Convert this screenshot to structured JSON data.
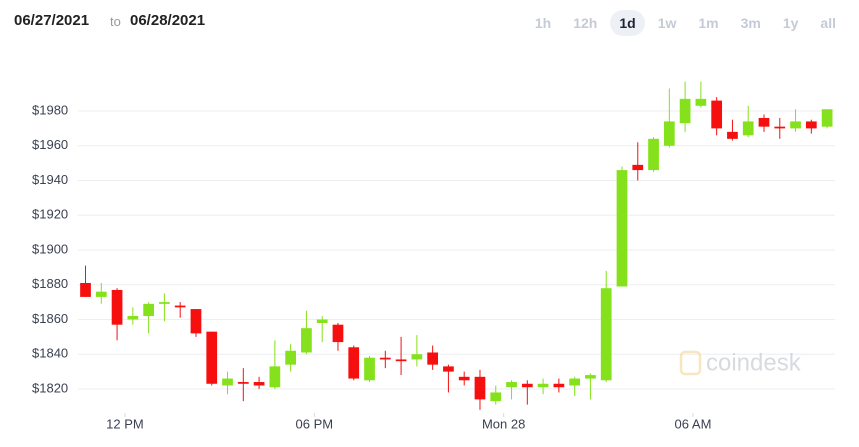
{
  "header": {
    "from": "06/27/2021",
    "to": "to",
    "until": "06/28/2021",
    "ranges": [
      "1h",
      "12h",
      "1d",
      "1w",
      "1m",
      "3m",
      "1y",
      "all"
    ],
    "active_range": 2
  },
  "chart_data": {
    "type": "candlestick",
    "x": [
      10.75,
      11.25,
      11.75,
      12.25,
      12.75,
      13.25,
      13.75,
      14.25,
      14.75,
      15.25,
      15.75,
      16.25,
      16.75,
      17.25,
      17.75,
      18.25,
      18.75,
      19.25,
      19.75,
      20.25,
      20.75,
      21.25,
      21.75,
      22.25,
      22.75,
      23.25,
      23.75,
      24.25,
      24.75,
      25.25,
      25.75,
      26.25,
      26.75,
      27.25,
      27.75,
      28.25,
      28.75,
      29.25,
      29.75,
      30.25,
      30.75,
      31.25,
      31.75,
      32.25,
      32.75,
      33.25,
      33.75,
      34.25
    ],
    "open": [
      1881,
      1873,
      1877,
      1860,
      1862,
      1869,
      1868,
      1866,
      1853,
      1822,
      1824,
      1824,
      1821,
      1834,
      1841,
      1858,
      1857,
      1844,
      1825,
      1838,
      1837,
      1837,
      1841,
      1833,
      1827,
      1827,
      1813,
      1821,
      1823,
      1821,
      1823,
      1822,
      1826,
      1825,
      1879,
      1949,
      1946,
      1960,
      1973,
      1983,
      1986,
      1968,
      1966,
      1976,
      1971,
      1970,
      1974,
      1971
    ],
    "high": [
      1891,
      1881,
      1878,
      1867,
      1870,
      1875,
      1870,
      1866,
      1853,
      1830,
      1832,
      1827,
      1848,
      1846,
      1865,
      1862,
      1858,
      1845,
      1839,
      1842,
      1850,
      1851,
      1845,
      1834,
      1830,
      1831,
      1822,
      1825,
      1825,
      1826,
      1826,
      1827,
      1829,
      1888,
      1948,
      1962,
      1965,
      1993,
      1997,
      1997,
      1988,
      1975,
      1983,
      1978,
      1976,
      1981,
      1975,
      1981
    ],
    "low": [
      1873,
      1869,
      1848,
      1857,
      1852,
      1859,
      1861,
      1850,
      1822,
      1817,
      1813,
      1820,
      1820,
      1830,
      1840,
      1847,
      1842,
      1825,
      1824,
      1832,
      1828,
      1833,
      1831,
      1818,
      1822,
      1808,
      1811,
      1814,
      1811,
      1817,
      1818,
      1816,
      1814,
      1824,
      1879,
      1940,
      1945,
      1959,
      1968,
      1982,
      1966,
      1963,
      1965,
      1968,
      1964,
      1968,
      1967,
      1970
    ],
    "close": [
      1873,
      1876,
      1857,
      1862,
      1869,
      1870,
      1867,
      1852,
      1823,
      1826,
      1823,
      1822,
      1833,
      1842,
      1855,
      1860,
      1847,
      1826,
      1838,
      1837,
      1836,
      1840,
      1834,
      1830,
      1825,
      1814,
      1818,
      1824,
      1821,
      1823,
      1821,
      1826,
      1828,
      1878,
      1946,
      1946,
      1964,
      1974,
      1987,
      1987,
      1970,
      1964,
      1974,
      1971,
      1970,
      1974,
      1970,
      1981
    ],
    "up_color": "#84e11b",
    "down_color": "#f50f0f",
    "xlim": [
      10.1,
      34.5
    ],
    "xticks": [
      {
        "value": 12,
        "label": "12 PM"
      },
      {
        "value": 18,
        "label": "06 PM"
      },
      {
        "value": 24,
        "label": "Mon 28"
      },
      {
        "value": 30,
        "label": "06 AM"
      }
    ],
    "ylim": [
      1806,
      2010
    ],
    "yticks": [
      {
        "value": 1820,
        "label": "$1820"
      },
      {
        "value": 1840,
        "label": "$1840"
      },
      {
        "value": 1860,
        "label": "$1860"
      },
      {
        "value": 1880,
        "label": "$1880"
      },
      {
        "value": 1900,
        "label": "$1900"
      },
      {
        "value": 1920,
        "label": "$1920"
      },
      {
        "value": 1940,
        "label": "$1940"
      },
      {
        "value": 1960,
        "label": "$1960"
      },
      {
        "value": 1980,
        "label": "$1980"
      }
    ],
    "grid": true,
    "watermark": "coindesk"
  }
}
